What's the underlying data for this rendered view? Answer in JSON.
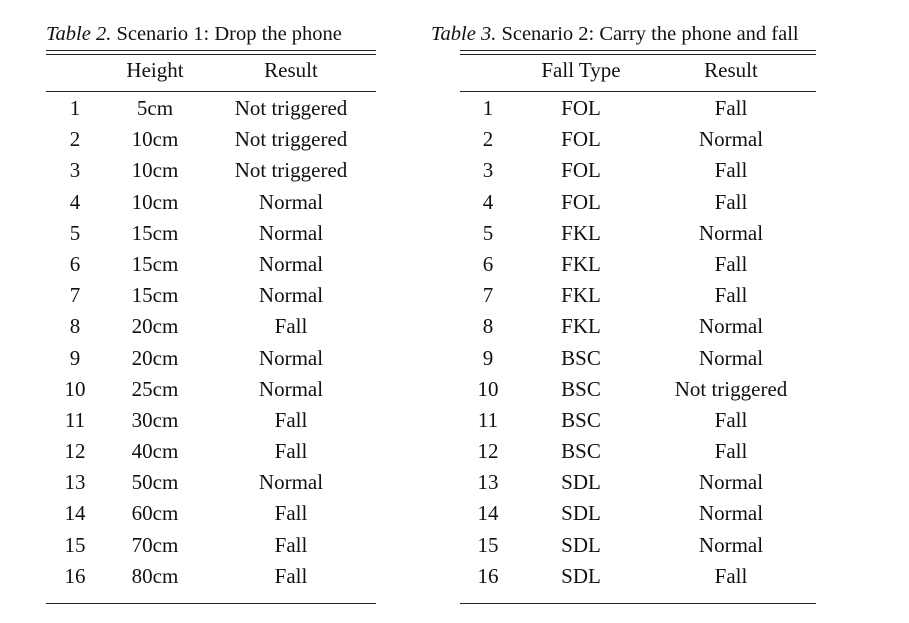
{
  "table2": {
    "caption_label": "Table 2.",
    "caption_title": "Scenario 1: Drop the phone",
    "columns": [
      "",
      "Height",
      "Result"
    ],
    "rows": [
      [
        "1",
        "5cm",
        "Not triggered"
      ],
      [
        "2",
        "10cm",
        "Not triggered"
      ],
      [
        "3",
        "10cm",
        "Not triggered"
      ],
      [
        "4",
        "10cm",
        "Normal"
      ],
      [
        "5",
        "15cm",
        "Normal"
      ],
      [
        "6",
        "15cm",
        "Normal"
      ],
      [
        "7",
        "15cm",
        "Normal"
      ],
      [
        "8",
        "20cm",
        "Fall"
      ],
      [
        "9",
        "20cm",
        "Normal"
      ],
      [
        "10",
        "25cm",
        "Normal"
      ],
      [
        "11",
        "30cm",
        "Fall"
      ],
      [
        "12",
        "40cm",
        "Fall"
      ],
      [
        "13",
        "50cm",
        "Normal"
      ],
      [
        "14",
        "60cm",
        "Fall"
      ],
      [
        "15",
        "70cm",
        "Fall"
      ],
      [
        "16",
        "80cm",
        "Fall"
      ]
    ]
  },
  "table3": {
    "caption_label": "Table 3.",
    "caption_title": "Scenario 2: Carry the phone and fall",
    "columns": [
      "",
      "Fall Type",
      "Result"
    ],
    "rows": [
      [
        "1",
        "FOL",
        "Fall"
      ],
      [
        "2",
        "FOL",
        "Normal"
      ],
      [
        "3",
        "FOL",
        "Fall"
      ],
      [
        "4",
        "FOL",
        "Fall"
      ],
      [
        "5",
        "FKL",
        "Normal"
      ],
      [
        "6",
        "FKL",
        "Fall"
      ],
      [
        "7",
        "FKL",
        "Fall"
      ],
      [
        "8",
        "FKL",
        "Normal"
      ],
      [
        "9",
        "BSC",
        "Normal"
      ],
      [
        "10",
        "BSC",
        "Not triggered"
      ],
      [
        "11",
        "BSC",
        "Fall"
      ],
      [
        "12",
        "BSC",
        "Fall"
      ],
      [
        "13",
        "SDL",
        "Normal"
      ],
      [
        "14",
        "SDL",
        "Normal"
      ],
      [
        "15",
        "SDL",
        "Normal"
      ],
      [
        "16",
        "SDL",
        "Fall"
      ]
    ]
  }
}
